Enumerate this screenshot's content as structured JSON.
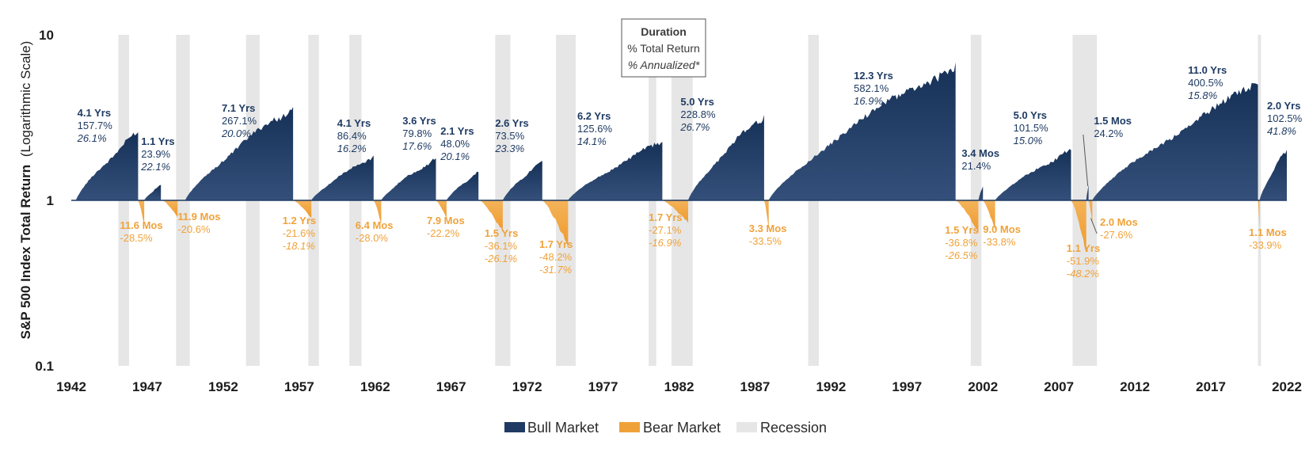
{
  "chart_data": {
    "type": "area",
    "ylabel": "S&P 500 Index Total Return",
    "ylabel_note": "(Logarithmic Scale)",
    "y_scale": "log",
    "ylim": [
      0.1,
      10
    ],
    "y_ticks": [
      {
        "value": 10,
        "label": "10"
      },
      {
        "value": 1,
        "label": "1"
      },
      {
        "value": 0.1,
        "label": "0.1"
      }
    ],
    "xlim": [
      1942,
      2022
    ],
    "x_ticks": [
      "1942",
      "1947",
      "1952",
      "1957",
      "1962",
      "1967",
      "1972",
      "1977",
      "1982",
      "1987",
      "1992",
      "1997",
      "2002",
      "2007",
      "2012",
      "2017",
      "2022"
    ],
    "key_box": {
      "title": "Duration",
      "line1": "% Total Return",
      "line2": "% Annualized*"
    },
    "legend": {
      "placement": "bottom-center",
      "items": [
        {
          "label": "Bull Market",
          "color": "#1f3b63"
        },
        {
          "label": "Bear Market",
          "color": "#f0a23a"
        },
        {
          "label": "Recession",
          "color": "#e6e6e6"
        }
      ]
    },
    "colors": {
      "bull": "#1f3b63",
      "bull_light": "#34507a",
      "bear": "#f0a23a",
      "recession": "#e6e6e6",
      "axis": "#1f3b63"
    },
    "recessions": [
      [
        1945.1,
        1945.8
      ],
      [
        1948.9,
        1949.8
      ],
      [
        1953.5,
        1954.4
      ],
      [
        1957.6,
        1958.3
      ],
      [
        1960.3,
        1961.1
      ],
      [
        1969.9,
        1970.9
      ],
      [
        1973.9,
        1975.2
      ],
      [
        1980.0,
        1980.5
      ],
      [
        1981.5,
        1982.9
      ],
      [
        1990.5,
        1991.2
      ],
      [
        2001.2,
        2001.9
      ],
      [
        2007.9,
        2009.5
      ],
      [
        2020.1,
        2020.3
      ]
    ],
    "bull_markets": [
      {
        "start": 1942.3,
        "end": 1946.4,
        "peak": 2.577,
        "duration": "4.1 Yrs",
        "total": "157.7%",
        "annualized": "26.1%"
      },
      {
        "start": 1946.8,
        "end": 1947.9,
        "peak": 1.239,
        "duration": "1.1 Yrs",
        "total": "23.9%",
        "annualized": "22.1%"
      },
      {
        "start": 1949.5,
        "end": 1956.6,
        "peak": 3.671,
        "duration": "7.1 Yrs",
        "total": "267.1%",
        "annualized": "20.0%"
      },
      {
        "start": 1957.8,
        "end": 1961.9,
        "peak": 1.864,
        "duration": "4.1 Yrs",
        "total": "86.4%",
        "annualized": "16.2%"
      },
      {
        "start": 1962.4,
        "end": 1966.0,
        "peak": 1.798,
        "duration": "3.6 Yrs",
        "total": "79.8%",
        "annualized": "17.6%"
      },
      {
        "start": 1966.7,
        "end": 1968.8,
        "peak": 1.48,
        "duration": "2.1 Yrs",
        "total": "48.0%",
        "annualized": "20.1%"
      },
      {
        "start": 1970.4,
        "end": 1973.0,
        "peak": 1.735,
        "duration": "2.6 Yrs",
        "total": "73.5%",
        "annualized": "23.3%"
      },
      {
        "start": 1974.7,
        "end": 1980.9,
        "peak": 2.256,
        "duration": "6.2 Yrs",
        "total": "125.6%",
        "annualized": "14.1%"
      },
      {
        "start": 1982.6,
        "end": 1987.6,
        "peak": 3.288,
        "duration": "5.0 Yrs",
        "total": "228.8%",
        "annualized": "26.7%"
      },
      {
        "start": 1987.9,
        "end": 2000.2,
        "peak": 6.821,
        "duration": "12.3 Yrs",
        "total": "582.1%",
        "annualized": "16.9%"
      },
      {
        "start": 2001.7,
        "end": 2002.0,
        "peak": 1.214,
        "duration": "3.4 Mos",
        "total": "21.4%",
        "annualized": ""
      },
      {
        "start": 2002.8,
        "end": 2007.8,
        "peak": 2.015,
        "duration": "5.0 Yrs",
        "total": "101.5%",
        "annualized": "15.0%"
      },
      {
        "start": 2008.8,
        "end": 2008.95,
        "peak": 1.242,
        "duration": "1.5 Mos",
        "total": "24.2%",
        "annualized": ""
      },
      {
        "start": 2009.2,
        "end": 2020.1,
        "peak": 5.005,
        "duration": "11.0 Yrs",
        "total": "400.5%",
        "annualized": "15.8%"
      },
      {
        "start": 2020.2,
        "end": 2022.0,
        "peak": 2.025,
        "duration": "2.0 Yrs",
        "total": "102.5%",
        "annualized": "41.8%"
      }
    ],
    "bear_markets": [
      {
        "start": 1946.4,
        "end": 1946.8,
        "trough": 0.715,
        "duration": "11.6 Mos",
        "total": "-28.5%",
        "annualized": ""
      },
      {
        "start": 1948.0,
        "end": 1949.0,
        "trough": 0.794,
        "duration": "11.9 Mos",
        "total": "-20.6%",
        "annualized": ""
      },
      {
        "start": 1956.6,
        "end": 1957.8,
        "trough": 0.784,
        "duration": "1.2 Yrs",
        "total": "-21.6%",
        "annualized": "-18.1%"
      },
      {
        "start": 1961.9,
        "end": 1962.4,
        "trough": 0.72,
        "duration": "6.4 Mos",
        "total": "-28.0%",
        "annualized": ""
      },
      {
        "start": 1966.0,
        "end": 1966.7,
        "trough": 0.778,
        "duration": "7.9 Mos",
        "total": "-22.2%",
        "annualized": ""
      },
      {
        "start": 1968.9,
        "end": 1970.4,
        "trough": 0.639,
        "duration": "1.5 Yrs",
        "total": "-36.1%",
        "annualized": "-26.1%"
      },
      {
        "start": 1973.0,
        "end": 1974.7,
        "trough": 0.518,
        "duration": "1.7 Yrs",
        "total": "-48.2%",
        "annualized": "-31.7%"
      },
      {
        "start": 1980.9,
        "end": 1982.6,
        "trough": 0.729,
        "duration": "1.7 Yrs",
        "total": "-27.1%",
        "annualized": "-16.9%"
      },
      {
        "start": 1987.6,
        "end": 1987.9,
        "trough": 0.665,
        "duration": "3.3 Mos",
        "total": "-33.5%",
        "annualized": ""
      },
      {
        "start": 2000.2,
        "end": 2001.7,
        "trough": 0.632,
        "duration": "1.5 Yrs",
        "total": "-36.8%",
        "annualized": "-26.5%"
      },
      {
        "start": 2002.0,
        "end": 2002.8,
        "trough": 0.662,
        "duration": "9.0 Mos",
        "total": "-33.8%",
        "annualized": ""
      },
      {
        "start": 2007.8,
        "end": 2008.8,
        "trough": 0.481,
        "duration": "1.1 Yrs",
        "total": "-51.9%",
        "annualized": "-48.2%"
      },
      {
        "start": 2008.95,
        "end": 2009.2,
        "trough": 0.724,
        "duration": "2.0 Mos",
        "total": "-27.6%",
        "annualized": ""
      },
      {
        "start": 2020.1,
        "end": 2020.2,
        "trough": 0.661,
        "duration": "1.1 Mos",
        "total": "-33.9%",
        "annualized": ""
      }
    ]
  }
}
